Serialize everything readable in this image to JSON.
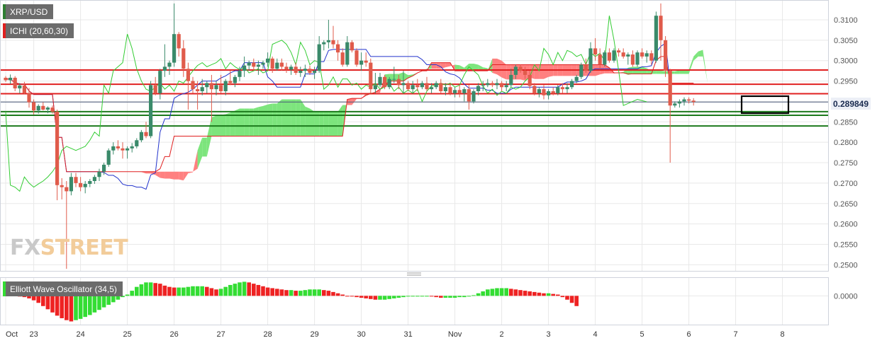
{
  "legend": {
    "pair_label": "XRP/USD",
    "ichimoku_label": "ICHI (20,60,30)",
    "oscillator_label": "Elliott Wave Oscillator (34,5)"
  },
  "watermark": {
    "part1": "FX",
    "part2": "STREET"
  },
  "current_price_label": "0.289849",
  "colors": {
    "bull": "#3a8a6a",
    "bear": "#e05b4b",
    "kumo": "#ff6a6a",
    "kumo_bull": "#66e066",
    "tenkan": "#2233cc",
    "kijun": "#e02020",
    "chikou": "#33cc33",
    "hline_red": "#e02020",
    "hline_green": "#1d7a1d",
    "osc_up": "#33dd33",
    "osc_down": "#ee2222",
    "grid": "#e8e8e8"
  },
  "chart_data": [
    {
      "type": "candlestick",
      "title": "XRP/USD",
      "ylim": [
        0.2485,
        0.3145
      ],
      "y_ticks": [
        "0.3100",
        "0.3050",
        "0.3000",
        "0.2950",
        "0.2900",
        "0.2850",
        "0.2800",
        "0.2750",
        "0.2700",
        "0.2650",
        "0.2600",
        "0.2550",
        "0.2500"
      ],
      "x_tick_labels": [
        {
          "label": "Oct",
          "bar": 0
        },
        {
          "label": "23",
          "bar": 6
        },
        {
          "label": "24",
          "bar": 16
        },
        {
          "label": "25",
          "bar": 26
        },
        {
          "label": "26",
          "bar": 36
        },
        {
          "label": "27",
          "bar": 46
        },
        {
          "label": "28",
          "bar": 56
        },
        {
          "label": "29",
          "bar": 66
        },
        {
          "label": "30",
          "bar": 76
        },
        {
          "label": "31",
          "bar": 86
        },
        {
          "label": "Nov",
          "bar": 96
        },
        {
          "label": "2",
          "bar": 106
        },
        {
          "label": "3",
          "bar": 116
        },
        {
          "label": "4",
          "bar": 126
        },
        {
          "label": "5",
          "bar": 136
        },
        {
          "label": "6",
          "bar": 146
        },
        {
          "label": "7",
          "bar": 156
        },
        {
          "label": "8",
          "bar": 166
        }
      ],
      "candles": [
        [
          0.2958,
          0.2962,
          0.2948,
          0.2952
        ],
        [
          0.2952,
          0.2966,
          0.2943,
          0.2958
        ],
        [
          0.2958,
          0.2962,
          0.2925,
          0.2932
        ],
        [
          0.2932,
          0.2945,
          0.292,
          0.2939
        ],
        [
          0.2939,
          0.2948,
          0.2918,
          0.292
        ],
        [
          0.292,
          0.2933,
          0.2885,
          0.2898
        ],
        [
          0.2898,
          0.2905,
          0.2868,
          0.2878
        ],
        [
          0.2878,
          0.2893,
          0.287,
          0.2889
        ],
        [
          0.2889,
          0.2898,
          0.2878,
          0.288
        ],
        [
          0.288,
          0.2888,
          0.2871,
          0.2885
        ],
        [
          0.2885,
          0.289,
          0.287,
          0.2875
        ],
        [
          0.2875,
          0.288,
          0.2658,
          0.2695
        ],
        [
          0.2695,
          0.2712,
          0.266,
          0.269
        ],
        [
          0.269,
          0.2705,
          0.249,
          0.268
        ],
        [
          0.268,
          0.2725,
          0.267,
          0.2715
        ],
        [
          0.2715,
          0.2725,
          0.269,
          0.27
        ],
        [
          0.27,
          0.2715,
          0.268,
          0.269
        ],
        [
          0.269,
          0.2705,
          0.2675,
          0.2698
        ],
        [
          0.2698,
          0.271,
          0.269,
          0.2705
        ],
        [
          0.2705,
          0.272,
          0.2698,
          0.2715
        ],
        [
          0.2715,
          0.2735,
          0.2705,
          0.2728
        ],
        [
          0.2728,
          0.275,
          0.272,
          0.2745
        ],
        [
          0.2745,
          0.2785,
          0.274,
          0.278
        ],
        [
          0.278,
          0.28,
          0.277,
          0.279
        ],
        [
          0.279,
          0.2805,
          0.278,
          0.2785
        ],
        [
          0.2785,
          0.28,
          0.276,
          0.278
        ],
        [
          0.278,
          0.279,
          0.276,
          0.2785
        ],
        [
          0.2785,
          0.2798,
          0.2775,
          0.279
        ],
        [
          0.279,
          0.281,
          0.2785,
          0.2805
        ],
        [
          0.2805,
          0.283,
          0.28,
          0.2825
        ],
        [
          0.2825,
          0.285,
          0.281,
          0.2815
        ],
        [
          0.2815,
          0.295,
          0.281,
          0.294
        ],
        [
          0.294,
          0.296,
          0.2915,
          0.292
        ],
        [
          0.292,
          0.298,
          0.2905,
          0.2975
        ],
        [
          0.2975,
          0.304,
          0.296,
          0.2985
        ],
        [
          0.2985,
          0.3,
          0.2965,
          0.2995
        ],
        [
          0.2995,
          0.314,
          0.2985,
          0.3065
        ],
        [
          0.3065,
          0.307,
          0.301,
          0.303
        ],
        [
          0.303,
          0.305,
          0.296,
          0.298
        ],
        [
          0.298,
          0.2995,
          0.288,
          0.295
        ],
        [
          0.295,
          0.296,
          0.292,
          0.293
        ],
        [
          0.293,
          0.295,
          0.288,
          0.2925
        ],
        [
          0.2925,
          0.2955,
          0.2915,
          0.2935
        ],
        [
          0.2935,
          0.295,
          0.292,
          0.2945
        ],
        [
          0.2945,
          0.2965,
          0.285,
          0.293
        ],
        [
          0.293,
          0.295,
          0.2915,
          0.294
        ],
        [
          0.294,
          0.2965,
          0.292,
          0.2925
        ],
        [
          0.2925,
          0.2955,
          0.2915,
          0.295
        ],
        [
          0.295,
          0.2975,
          0.294,
          0.2945
        ],
        [
          0.2945,
          0.2965,
          0.2935,
          0.296
        ],
        [
          0.296,
          0.2985,
          0.295,
          0.2975
        ],
        [
          0.2975,
          0.301,
          0.296,
          0.2988
        ],
        [
          0.2988,
          0.3,
          0.2975,
          0.2995
        ],
        [
          0.2995,
          0.3005,
          0.2975,
          0.2985
        ],
        [
          0.2985,
          0.3,
          0.2965,
          0.299
        ],
        [
          0.299,
          0.3,
          0.298,
          0.2995
        ],
        [
          0.2995,
          0.302,
          0.2985,
          0.3005
        ],
        [
          0.3005,
          0.301,
          0.297,
          0.298
        ],
        [
          0.298,
          0.3005,
          0.2975,
          0.2995
        ],
        [
          0.2995,
          0.3005,
          0.2975,
          0.2985
        ],
        [
          0.2985,
          0.2995,
          0.297,
          0.2978
        ],
        [
          0.2978,
          0.299,
          0.2965,
          0.2985
        ],
        [
          0.2985,
          0.2995,
          0.2965,
          0.297
        ],
        [
          0.297,
          0.2985,
          0.296,
          0.2975
        ],
        [
          0.2975,
          0.299,
          0.296,
          0.298
        ],
        [
          0.298,
          0.2988,
          0.2965,
          0.297
        ],
        [
          0.297,
          0.2985,
          0.2955,
          0.2975
        ],
        [
          0.2975,
          0.306,
          0.297,
          0.304
        ],
        [
          0.304,
          0.305,
          0.3025,
          0.3045
        ],
        [
          0.3045,
          0.31,
          0.303,
          0.305
        ],
        [
          0.305,
          0.3085,
          0.303,
          0.304
        ],
        [
          0.304,
          0.305,
          0.3,
          0.302
        ],
        [
          0.302,
          0.303,
          0.2985,
          0.299
        ],
        [
          0.299,
          0.306,
          0.2985,
          0.3045
        ],
        [
          0.3045,
          0.305,
          0.302,
          0.3025
        ],
        [
          0.3025,
          0.303,
          0.2985,
          0.299
        ],
        [
          0.299,
          0.302,
          0.2975,
          0.3
        ],
        [
          0.3,
          0.302,
          0.2985,
          0.2995
        ],
        [
          0.2995,
          0.3005,
          0.292,
          0.293
        ],
        [
          0.293,
          0.297,
          0.292,
          0.294
        ],
        [
          0.294,
          0.297,
          0.2935,
          0.296
        ],
        [
          0.296,
          0.2965,
          0.293,
          0.2935
        ],
        [
          0.2935,
          0.296,
          0.293,
          0.2955
        ],
        [
          0.2955,
          0.2985,
          0.2945,
          0.2955
        ],
        [
          0.2955,
          0.2965,
          0.293,
          0.294
        ],
        [
          0.294,
          0.2975,
          0.292,
          0.2945
        ],
        [
          0.2945,
          0.295,
          0.2925,
          0.293
        ],
        [
          0.293,
          0.295,
          0.292,
          0.294
        ],
        [
          0.294,
          0.2955,
          0.2925,
          0.2935
        ],
        [
          0.2935,
          0.295,
          0.293,
          0.2945
        ],
        [
          0.2945,
          0.296,
          0.2925,
          0.293
        ],
        [
          0.293,
          0.2945,
          0.292,
          0.2935
        ],
        [
          0.2935,
          0.295,
          0.293,
          0.2945
        ],
        [
          0.2945,
          0.2955,
          0.292,
          0.2925
        ],
        [
          0.2925,
          0.2945,
          0.2915,
          0.2935
        ],
        [
          0.2935,
          0.2945,
          0.2915,
          0.292
        ],
        [
          0.292,
          0.2935,
          0.291,
          0.2928
        ],
        [
          0.2928,
          0.294,
          0.291,
          0.292
        ],
        [
          0.292,
          0.2935,
          0.29,
          0.293
        ],
        [
          0.293,
          0.294,
          0.288,
          0.29
        ],
        [
          0.29,
          0.293,
          0.2895,
          0.2925
        ],
        [
          0.2925,
          0.2945,
          0.2915,
          0.2938
        ],
        [
          0.2938,
          0.295,
          0.2925,
          0.294
        ],
        [
          0.294,
          0.2955,
          0.2935,
          0.2945
        ],
        [
          0.2945,
          0.295,
          0.2935,
          0.294
        ],
        [
          0.294,
          0.2955,
          0.293,
          0.2945
        ],
        [
          0.2945,
          0.295,
          0.2925,
          0.2935
        ],
        [
          0.2935,
          0.295,
          0.2925,
          0.294
        ],
        [
          0.294,
          0.298,
          0.2935,
          0.2965
        ],
        [
          0.2965,
          0.299,
          0.2955,
          0.2985
        ],
        [
          0.2985,
          0.299,
          0.297,
          0.2975
        ],
        [
          0.2975,
          0.2985,
          0.2955,
          0.2965
        ],
        [
          0.2965,
          0.2975,
          0.293,
          0.2938
        ],
        [
          0.2938,
          0.2945,
          0.2915,
          0.292
        ],
        [
          0.292,
          0.2935,
          0.291,
          0.293
        ],
        [
          0.293,
          0.294,
          0.2905,
          0.2915
        ],
        [
          0.2915,
          0.293,
          0.2905,
          0.2925
        ],
        [
          0.2925,
          0.2935,
          0.2915,
          0.292
        ],
        [
          0.292,
          0.294,
          0.2915,
          0.2935
        ],
        [
          0.2935,
          0.2945,
          0.292,
          0.293
        ],
        [
          0.293,
          0.2945,
          0.292,
          0.2935
        ],
        [
          0.2935,
          0.2955,
          0.293,
          0.295
        ],
        [
          0.295,
          0.2965,
          0.2945,
          0.296
        ],
        [
          0.296,
          0.2995,
          0.2955,
          0.299
        ],
        [
          0.299,
          0.3005,
          0.297,
          0.2975
        ],
        [
          0.2975,
          0.3045,
          0.297,
          0.303
        ],
        [
          0.303,
          0.3055,
          0.3,
          0.3015
        ],
        [
          0.3015,
          0.303,
          0.298,
          0.299
        ],
        [
          0.299,
          0.3025,
          0.2985,
          0.302
        ],
        [
          0.302,
          0.303,
          0.2995,
          0.3
        ],
        [
          0.3,
          0.303,
          0.2995,
          0.3025
        ],
        [
          0.3025,
          0.303,
          0.301,
          0.302
        ],
        [
          0.302,
          0.303,
          0.3005,
          0.301
        ],
        [
          0.301,
          0.302,
          0.299,
          0.3015
        ],
        [
          0.3015,
          0.3025,
          0.2985,
          0.299
        ],
        [
          0.299,
          0.3025,
          0.2985,
          0.302
        ],
        [
          0.302,
          0.303,
          0.3005,
          0.301
        ],
        [
          0.301,
          0.3025,
          0.2995,
          0.3018
        ],
        [
          0.3018,
          0.3025,
          0.299,
          0.3
        ],
        [
          0.3,
          0.312,
          0.2995,
          0.311
        ],
        [
          0.311,
          0.314,
          0.3,
          0.305
        ],
        [
          0.305,
          0.306,
          0.296,
          0.2975
        ],
        [
          0.2975,
          0.298,
          0.275,
          0.289
        ],
        [
          0.289,
          0.29,
          0.2885,
          0.2895
        ],
        [
          0.2895,
          0.2905,
          0.2885,
          0.29
        ],
        [
          0.29,
          0.291,
          0.289,
          0.2905
        ],
        [
          0.2905,
          0.291,
          0.2895,
          0.2902
        ],
        [
          0.2902,
          0.2908,
          0.289,
          0.2899
        ]
      ],
      "horizontal_lines": [
        {
          "value": 0.2977,
          "color": "red"
        },
        {
          "value": 0.2942,
          "color": "red"
        },
        {
          "value": 0.2919,
          "color": "red"
        },
        {
          "value": 0.2875,
          "color": "green"
        },
        {
          "value": 0.2866,
          "color": "green"
        },
        {
          "value": 0.284,
          "color": "green"
        }
      ],
      "current_price": 0.289849
    },
    {
      "type": "bar",
      "title": "Elliott Wave Oscillator (34,5)",
      "ylim": [
        -0.0045,
        0.0028
      ],
      "y_ticks": [
        "0.0000"
      ],
      "values": [
        0.0006,
        0.0003,
        0.0001,
        -0.0001,
        -0.0002,
        -0.0004,
        -0.0007,
        -0.0011,
        -0.0016,
        -0.0021,
        -0.0026,
        -0.0031,
        -0.0035,
        -0.0038,
        -0.004,
        -0.0038,
        -0.0036,
        -0.0033,
        -0.003,
        -0.0026,
        -0.0022,
        -0.0018,
        -0.0014,
        -0.001,
        -0.0006,
        -0.0002,
        0.0002,
        0.0008,
        0.0014,
        0.0018,
        0.0021,
        0.0021,
        0.002,
        0.0019,
        0.0016,
        0.0014,
        0.0013,
        0.0013,
        0.0013,
        0.0014,
        0.0015,
        0.0015,
        0.0015,
        0.0014,
        0.0012,
        0.001,
        0.0011,
        0.0014,
        0.0017,
        0.0019,
        0.0021,
        0.0022,
        0.0021,
        0.0019,
        0.0017,
        0.0015,
        0.0013,
        0.0012,
        0.0011,
        0.001,
        0.0009,
        0.0009,
        0.0008,
        0.0008,
        0.0009,
        0.001,
        0.001,
        0.001,
        0.0009,
        0.0008,
        0.0006,
        0.0004,
        0.0002,
        0.0,
        -0.0001,
        -0.0002,
        -0.0003,
        -0.0004,
        -0.0005,
        -0.0006,
        -0.0006,
        -0.0006,
        -0.0005,
        -0.0004,
        -0.0003,
        -0.0002,
        -0.0001,
        0.0,
        0.0,
        0.0,
        0.0,
        -0.0001,
        -0.0002,
        -0.0003,
        -0.0003,
        -0.0003,
        -0.0003,
        -0.0002,
        -0.0002,
        -0.0001,
        0.0001,
        0.0004,
        0.0007,
        0.001,
        0.0011,
        0.0012,
        0.0012,
        0.0012,
        0.0011,
        0.001,
        0.0009,
        0.0008,
        0.0007,
        0.0006,
        0.0005,
        0.0004,
        0.0004,
        0.0003,
        0.0002,
        -0.0002,
        -0.0006,
        -0.0011,
        -0.0016
      ]
    }
  ]
}
